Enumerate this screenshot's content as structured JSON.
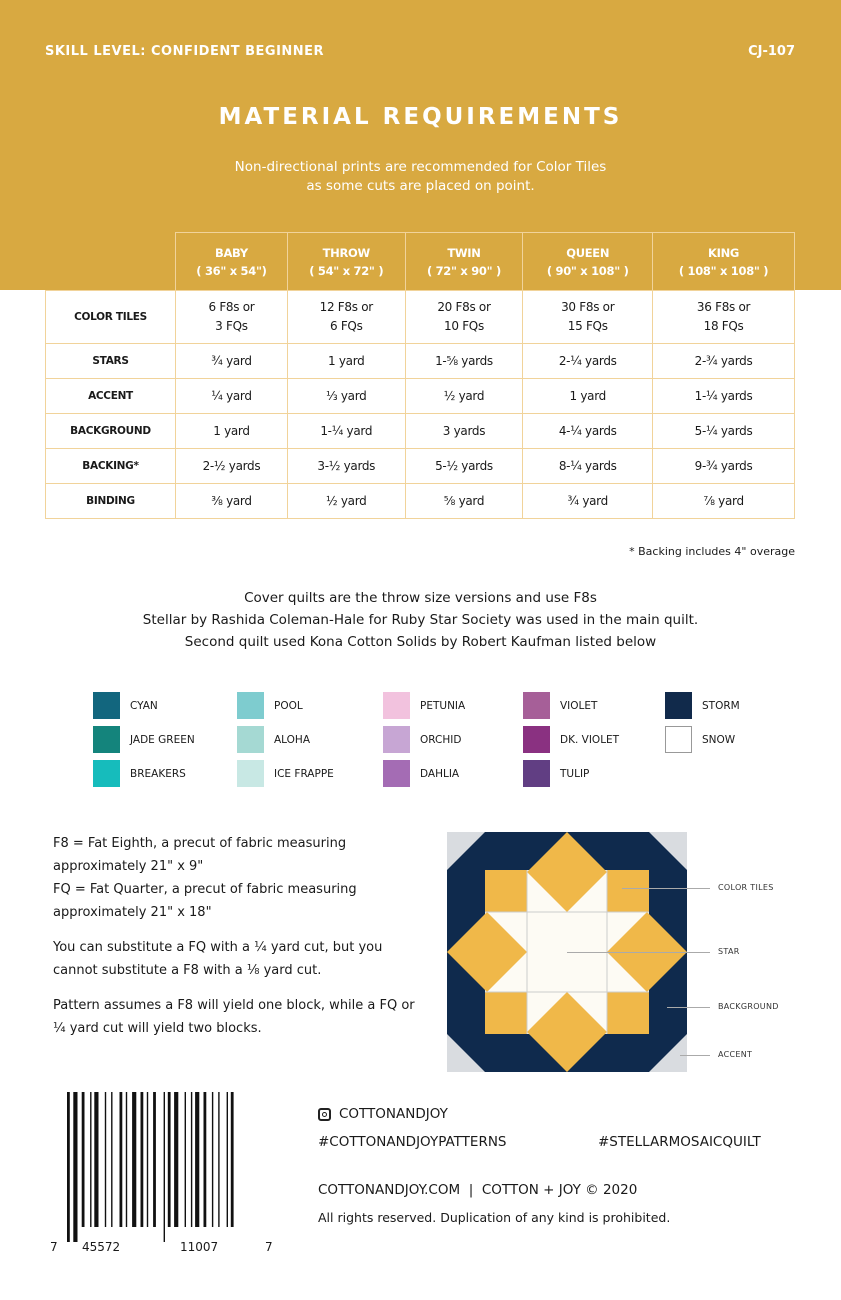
{
  "header": {
    "skill_level": "SKILL LEVEL: CONFIDENT BEGINNER",
    "code": "CJ-107",
    "title": "MATERIAL REQUIREMENTS",
    "subtitle_1": "Non-directional prints are recommended for Color Tiles",
    "subtitle_2": "as some cuts are placed on point."
  },
  "table": {
    "columns": [
      {
        "name": "BABY",
        "size": "( 36\" x 54\")"
      },
      {
        "name": "THROW",
        "size": "( 54\" x 72\" )"
      },
      {
        "name": "TWIN",
        "size": "( 72\" x 90\" )"
      },
      {
        "name": "QUEEN",
        "size": "( 90\" x 108\" )"
      },
      {
        "name": "KING",
        "size": "( 108\" x 108\" )"
      }
    ],
    "rows": [
      {
        "label": "COLOR TILES",
        "cells": [
          [
            "6 F8s or",
            "3 FQs"
          ],
          [
            "12 F8s or",
            "6 FQs"
          ],
          [
            "20 F8s or",
            "10 FQs"
          ],
          [
            "30 F8s or",
            "15 FQs"
          ],
          [
            "36 F8s or",
            "18 FQs"
          ]
        ]
      },
      {
        "label": "STARS",
        "cells": [
          [
            "¾ yard"
          ],
          [
            "1 yard"
          ],
          [
            "1-⅝ yards"
          ],
          [
            "2-¼ yards"
          ],
          [
            "2-¾ yards"
          ]
        ]
      },
      {
        "label": "ACCENT",
        "cells": [
          [
            "¼ yard"
          ],
          [
            "⅓ yard"
          ],
          [
            "½ yard"
          ],
          [
            "1 yard"
          ],
          [
            "1-¼ yards"
          ]
        ]
      },
      {
        "label": "BACKGROUND",
        "cells": [
          [
            "1 yard"
          ],
          [
            "1-¼ yard"
          ],
          [
            "3 yards"
          ],
          [
            "4-¼ yards"
          ],
          [
            "5-¼ yards"
          ]
        ]
      },
      {
        "label": "BACKING*",
        "cells": [
          [
            "2-½ yards"
          ],
          [
            "3-½ yards"
          ],
          [
            "5-½ yards"
          ],
          [
            "8-¼ yards"
          ],
          [
            "9-¾ yards"
          ]
        ]
      },
      {
        "label": "BINDING",
        "cells": [
          [
            "⅜ yard"
          ],
          [
            "½ yard"
          ],
          [
            "⅝ yard"
          ],
          [
            "¾ yard"
          ],
          [
            "⅞ yard"
          ]
        ]
      }
    ]
  },
  "note": "* Backing includes 4\" overage",
  "cover": [
    "Cover quilts are the throw size versions and use F8s",
    "Stellar by Rashida Coleman-Hale for Ruby Star Society was used in the main quilt.",
    "Second quilt used Kona Cotton Solids by Robert Kaufman listed below"
  ],
  "swatches": [
    [
      {
        "name": "CYAN",
        "color": "#12667E"
      },
      {
        "name": "JADE GREEN",
        "color": "#14847C"
      },
      {
        "name": "BREAKERS",
        "color": "#16BCBC"
      }
    ],
    [
      {
        "name": "POOL",
        "color": "#7ECCCF"
      },
      {
        "name": "ALOHA",
        "color": "#A5D9D3"
      },
      {
        "name": "ICE FRAPPE",
        "color": "#C8E8E4"
      }
    ],
    [
      {
        "name": "PETUNIA",
        "color": "#F2C2DE"
      },
      {
        "name": "ORCHID",
        "color": "#C7A6D4"
      },
      {
        "name": "DAHLIA",
        "color": "#A46CB4"
      }
    ],
    [
      {
        "name": "VIOLET",
        "color": "#A65F98"
      },
      {
        "name": "DK. VIOLET",
        "color": "#8A3181"
      },
      {
        "name": "TULIP",
        "color": "#613E83"
      }
    ],
    [
      {
        "name": "STORM",
        "color": "#112A4B"
      },
      {
        "name": "SNOW",
        "color": "#FFFFFF"
      }
    ]
  ],
  "definitions": [
    "F8 = Fat Eighth, a precut of fabric measuring approximately 21\" x 9\"",
    "FQ = Fat Quarter, a precut of fabric measuring approximately 21\" x 18\"",
    "You can substitute a FQ with a ¼ yard cut, but you cannot substitute a F8 with a ⅛ yard cut.",
    "Pattern assumes a F8 will yield one block, while a FQ or ¼ yard cut will yield two blocks."
  ],
  "block": {
    "labels": [
      "COLOR TILES",
      "STAR",
      "BACKGROUND",
      "ACCENT"
    ],
    "colors": {
      "accent": "#D9DCE0",
      "background": "#0F2A4D",
      "tiles": "#F0B849",
      "star": "#FDFBF4"
    }
  },
  "barcode": {
    "digits": [
      "7",
      "45572",
      "11007",
      "7"
    ]
  },
  "social": {
    "instagram": "COTTONANDJOY",
    "hashtag_1": "#COTTONANDJOYPATTERNS",
    "hashtag_2": "#STELLARMOSAICQUILT",
    "website_line": "COTTONANDJOY.COM  |  COTTON + JOY © 2020",
    "rights": "All rights reserved. Duplication of any kind is prohibited."
  },
  "colors": {
    "gold": "#D8A941",
    "table_border": "#F1D39A"
  }
}
